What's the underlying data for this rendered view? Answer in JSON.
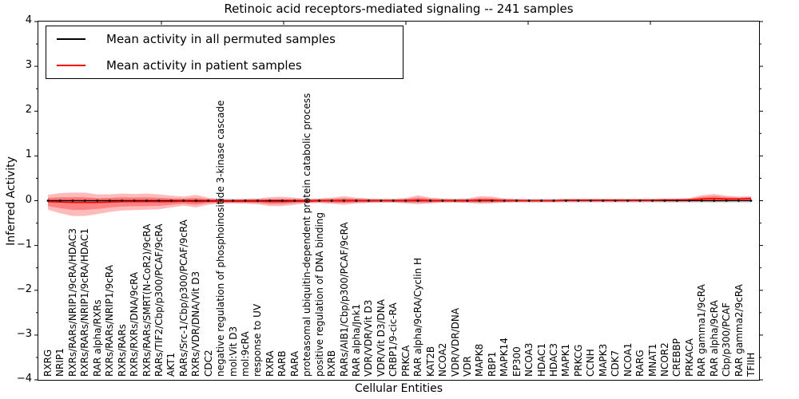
{
  "chart_data": {
    "type": "line",
    "title": "Retinoic acid receptors-mediated signaling -- 241 samples",
    "xlabel": "Cellular Entities",
    "ylabel": "Inferred Activity",
    "ylim": [
      -4,
      4
    ],
    "yticks": [
      4,
      3,
      2,
      1,
      0,
      -1,
      -2,
      -3,
      -4
    ],
    "grid": false,
    "legend_position": "upper-left",
    "xticklabel_rotation": 90,
    "categories": [
      "RXRG",
      "NRIP1",
      "RXRs/RARs/NRIP1/9cRA/HDAC3",
      "RXRs/RARs/NRIP1/9cRA/HDAC1",
      "RAR alpha/RXRs",
      "RXRs/RARs/NRIP1/9cRA",
      "RXRs/RARs",
      "RXRs/RXRs/DNA/9cRA",
      "RXRs/RARs/SMRT(N-CoR2)/9cRA",
      "RARs/TIF2/Cbp/p300/PCAF/9cRA",
      "AKT1",
      "RARs/Src-1/Cbp/p300/PCAF/9cRA",
      "RXRs/VDR/DNA/Vit D3",
      "CDC2",
      "negative regulation of phosphoinositide 3-kinase cascade",
      "mol:Vit D3",
      "mol:9cRA",
      "response to UV",
      "RXRA",
      "RARB",
      "RARA",
      "proteasomal ubiquitin-dependent protein catabolic process",
      "positive regulation of DNA binding",
      "RXRB",
      "RARs/AIB1/Cbp/p300/PCAF/9cRA",
      "RAR alpha/Jnk1",
      "VDR/VDR/Vit D3",
      "VDR/Vit D3/DNA",
      "CRBP1/9-cic-RA",
      "PRKCA",
      "RAR alpha/9cRA/Cyclin H",
      "KAT2B",
      "NCOA2",
      "VDR/VDR/DNA",
      "VDR",
      "MAPK8",
      "RBP1",
      "MAPK14",
      "EP300",
      "NCOA3",
      "HDAC1",
      "HDAC3",
      "MAPK1",
      "PRKCG",
      "CCNH",
      "MAPK3",
      "CDK7",
      "NCOA1",
      "RARG",
      "MNAT1",
      "NCOR2",
      "CREBBP",
      "PRKACA",
      "RAR gamma1/9cRA",
      "RAR alpha/9cRA",
      "Cbp/p300/PCAF",
      "RAR gamma2/9cRA",
      "TFIIH"
    ],
    "series": [
      {
        "name": "Mean activity in all permuted samples",
        "color": "#000000",
        "marker": "dot",
        "band_halfwidth": 0.04,
        "band_color": "#c8c8c8",
        "values": [
          0,
          0,
          0,
          0,
          0,
          0,
          0,
          0,
          0,
          0,
          0,
          0,
          0,
          0,
          0,
          0,
          0,
          0,
          0,
          0,
          0,
          0,
          0,
          0,
          0,
          0,
          0,
          0,
          0,
          0,
          0,
          0,
          0,
          0,
          0,
          0,
          0,
          0,
          0,
          0,
          0,
          0,
          0,
          0,
          0,
          0,
          0,
          0,
          0,
          0,
          0,
          0,
          0,
          0,
          0,
          0,
          0,
          0
        ]
      },
      {
        "name": "Mean activity in patient samples",
        "color": "#ff0000",
        "band_color": "#ff0000",
        "values": [
          -0.02,
          -0.03,
          -0.04,
          -0.04,
          -0.04,
          -0.03,
          -0.02,
          -0.02,
          -0.02,
          -0.02,
          -0.02,
          -0.01,
          -0.02,
          -0.01,
          -0.01,
          -0.01,
          -0.01,
          -0.01,
          -0.02,
          -0.02,
          -0.01,
          -0.01,
          0,
          0,
          0,
          0,
          0,
          0,
          0,
          0,
          0.01,
          0,
          0,
          0,
          0,
          0.01,
          0.01,
          0,
          0,
          0,
          0,
          0,
          0.01,
          0.01,
          0.01,
          0.01,
          0.01,
          0.01,
          0.01,
          0.01,
          0.02,
          0.02,
          0.02,
          0.04,
          0.05,
          0.04,
          0.04,
          0.05
        ],
        "band_upper": [
          0.13,
          0.17,
          0.18,
          0.18,
          0.14,
          0.14,
          0.16,
          0.15,
          0.16,
          0.14,
          0.11,
          0.09,
          0.13,
          0.07,
          0.04,
          0.03,
          0.04,
          0.05,
          0.08,
          0.09,
          0.07,
          0.04,
          0.05,
          0.07,
          0.1,
          0.07,
          0.05,
          0.04,
          0.04,
          0.06,
          0.12,
          0.07,
          0.05,
          0.04,
          0.05,
          0.1,
          0.09,
          0.05,
          0.04,
          0.03,
          0.03,
          0.03,
          0.04,
          0.04,
          0.04,
          0.04,
          0.04,
          0.04,
          0.04,
          0.04,
          0.04,
          0.04,
          0.06,
          0.12,
          0.15,
          0.11,
          0.09,
          0.1
        ],
        "band_lower": [
          -0.2,
          -0.28,
          -0.34,
          -0.34,
          -0.3,
          -0.25,
          -0.22,
          -0.21,
          -0.2,
          -0.19,
          -0.15,
          -0.11,
          -0.15,
          -0.09,
          -0.06,
          -0.06,
          -0.07,
          -0.08,
          -0.12,
          -0.12,
          -0.09,
          -0.06,
          -0.05,
          -0.07,
          -0.09,
          -0.06,
          -0.05,
          -0.04,
          -0.04,
          -0.06,
          -0.08,
          -0.06,
          -0.04,
          -0.04,
          -0.05,
          -0.07,
          -0.06,
          -0.04,
          -0.03,
          -0.03,
          -0.03,
          -0.03,
          -0.02,
          -0.02,
          -0.02,
          -0.02,
          -0.02,
          -0.02,
          -0.02,
          -0.02,
          -0.02,
          -0.02,
          -0.02,
          -0.02,
          -0.03,
          -0.02,
          -0.01,
          -0.02
        ]
      }
    ]
  }
}
